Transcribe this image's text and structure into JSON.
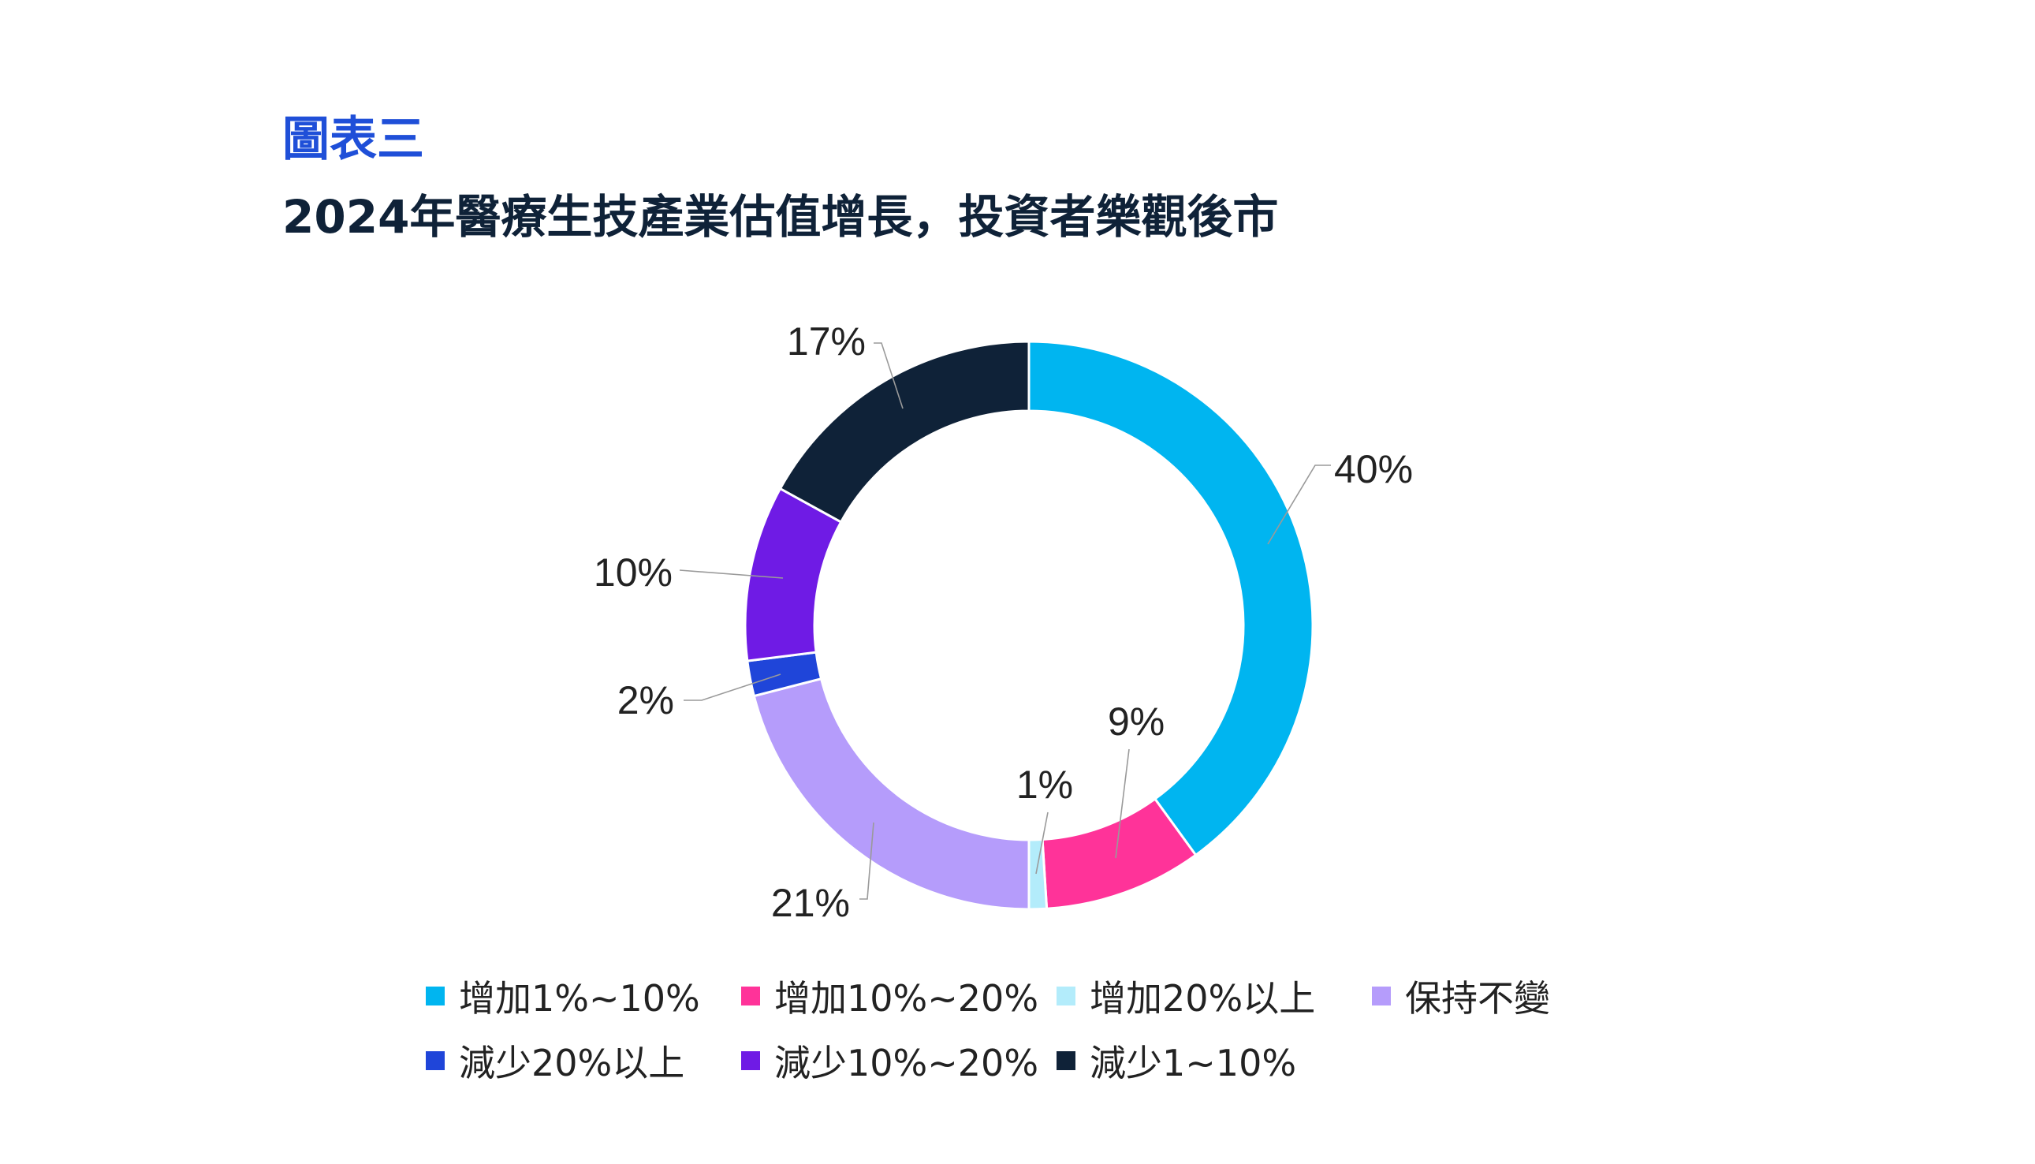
{
  "figure_label": "圖表三",
  "colors": {
    "label_blue": "#1f4fd8",
    "title_navy": "#0f2238",
    "leader_line": "#9a9a9a"
  },
  "chart_data": {
    "type": "pie",
    "donut": true,
    "title": "2024年醫療生技產業估值增長，投資者樂觀後市",
    "legend_position": "bottom",
    "categories": [
      "增加1%~10%",
      "增加10%~20%",
      "增加20%以上",
      "保持不變",
      "減少20%以上",
      "減少10%~20%",
      "減少1~10%"
    ],
    "values": [
      40,
      9,
      1,
      21,
      2,
      10,
      17
    ],
    "value_labels": [
      "40%",
      "9%",
      "1%",
      "21%",
      "2%",
      "10%",
      "17%"
    ],
    "colors": [
      "#00b5f0",
      "#ff3399",
      "#b3ecfb",
      "#b59cfb",
      "#1f45d9",
      "#6f1be5",
      "#0f2238"
    ],
    "legend_rows": [
      [
        "增加1%~10%",
        "增加10%~20%",
        "增加20%以上",
        "保持不變"
      ],
      [
        "減少20%以上",
        "減少10%~20%",
        "減少1~10%"
      ]
    ]
  }
}
